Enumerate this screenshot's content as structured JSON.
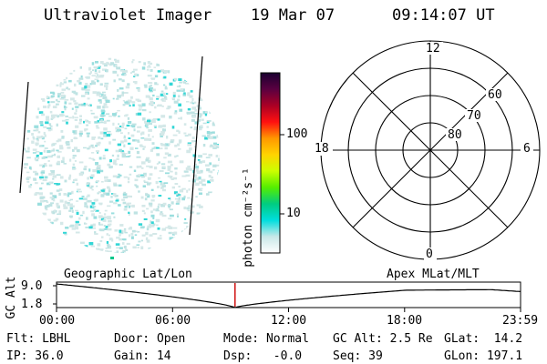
{
  "header": {
    "title": "Ultraviolet Imager",
    "date": "19 Mar 07",
    "time": "09:14:07 UT"
  },
  "colorbar": {
    "unit_label": "photon cm⁻²s⁻¹",
    "ticks": [
      "100",
      "10"
    ],
    "colors": [
      "#1a0030",
      "#5a0040",
      "#aa0025",
      "#ff1010",
      "#ff9800",
      "#ffd400",
      "#ccff00",
      "#55ee00",
      "#00cc80",
      "#00dddd",
      "#c8e8e8",
      "#ffffff"
    ]
  },
  "polar": {
    "mlt_labels": {
      "top": "12",
      "bottom": "0",
      "left": "18",
      "right": "6"
    },
    "lat_labels": [
      "60",
      "70",
      "80"
    ]
  },
  "timeline": {
    "y_axis_label": "GC Alt",
    "y_top": "9.0",
    "y_bottom": "1.8",
    "left_title": "Geographic Lat/Lon",
    "right_title": "Apex MLat/MLT",
    "x_ticks": [
      "00:00",
      "06:00",
      "12:00",
      "18:00",
      "23:59"
    ],
    "marker_color": "#cc0000",
    "marker_hour": 9.23
  },
  "status": {
    "flt": "Flt: LBHL",
    "door": "Door: Open",
    "mode": "Mode: Normal",
    "gcalt": "GC Alt: 2.5 Re",
    "glat": "GLat:  14.2",
    "ip": "IP: 36.0",
    "gain": "Gain: 14",
    "dsp": "Dsp:   -0.0",
    "seq": "Seq: 39",
    "glon": "GLon: 197.1"
  }
}
